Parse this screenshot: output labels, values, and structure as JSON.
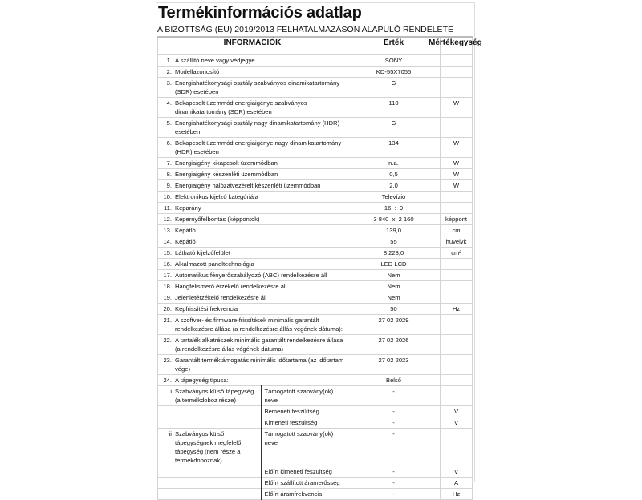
{
  "title": "Termékinformációs adatlap",
  "subtitle": "A BIZOTTSÁG (EU) 2019/2013 FELHATALMAZÁSON ALAPULÓ RENDELETE",
  "headers": {
    "info": "INFORMÁCIÓK",
    "value": "Érték",
    "unit": "Mértékegység"
  },
  "rows": [
    {
      "n": "1.",
      "label": "A szállító neve vagy védjegye",
      "value": "SONY",
      "unit": ""
    },
    {
      "n": "2.",
      "label": "Modellazonosító",
      "value": "KD-55X7055",
      "unit": ""
    },
    {
      "n": "3.",
      "label": "Energiahatékonysági osztály szabványos dinamikatartomány (SDR) esetében",
      "value": "G",
      "unit": ""
    },
    {
      "n": "4.",
      "label": "Bekapcsolt üzemmód energiaigénye szabványos dinamikatartomány (SDR) esetében",
      "value": "110",
      "unit": "W"
    },
    {
      "n": "5.",
      "label": "Energiahatékonysági osztály nagy dinamikatartomány (HDR) esetében",
      "value": "G",
      "unit": ""
    },
    {
      "n": "6.",
      "label": "Bekapcsolt üzemmód energiaigénye nagy dinamikatartomány (HDR) esetében",
      "value": "134",
      "unit": "W"
    },
    {
      "n": "7.",
      "label": "Energiaigény kikapcsolt üzemmódban",
      "value": "n.a.",
      "unit": "W"
    },
    {
      "n": "8.",
      "label": "Energiaigény készenléti üzemmódban",
      "value": "0,5",
      "unit": "W"
    },
    {
      "n": "9.",
      "label": "Energiaigény hálózatvezérelt készenléti üzemmódban",
      "value": "2,0",
      "unit": "W"
    },
    {
      "n": "10.",
      "label": "Elektronikus kijelző kategóriája",
      "value": "Televízió",
      "unit": ""
    },
    {
      "n": "11.",
      "label": "Képarány",
      "value": "16  :  9",
      "unit": ""
    },
    {
      "n": "12.",
      "label": "Képernyőfelbontás (képpontok)",
      "value": "3 840  x  2 160",
      "unit": "képpont"
    },
    {
      "n": "13.",
      "label": "Képátló",
      "value": "139,0",
      "unit": "cm"
    },
    {
      "n": "14.",
      "label": "Képátló",
      "value": "55",
      "unit": "hüvelyk"
    },
    {
      "n": "15.",
      "label": "Látható kijelzőfelület",
      "value": "8 228,0",
      "unit": "cm²"
    },
    {
      "n": "16.",
      "label": "Alkalmazott paneltechnológia",
      "value": "LED LCD",
      "unit": ""
    },
    {
      "n": "17.",
      "label": "Automatikus fényerőszabályozó (ABC) rendelkezésre áll",
      "value": "Nem",
      "unit": ""
    },
    {
      "n": "18.",
      "label": "Hangfelismerő érzékelő rendelkezésre áll",
      "value": "Nem",
      "unit": ""
    },
    {
      "n": "19.",
      "label": "Jelenlétérzékelő rendelkezésre áll",
      "value": "Nem",
      "unit": ""
    },
    {
      "n": "20.",
      "label": "Képfrissítési frekvencia",
      "value": "50",
      "unit": "Hz"
    },
    {
      "n": "21.",
      "label": "A szoftver- és firmware-frissítések minimális garantált rendelkezésre állása (a rendelkezésre állás végének dátuma):",
      "value": "27 02 2029",
      "unit": ""
    },
    {
      "n": "22.",
      "label": "A tartalék alkatrészek minimális garantált rendelkezésre állása (a rendelkezésre állás végének dátuma)",
      "value": "27 02 2026",
      "unit": ""
    },
    {
      "n": "23.",
      "label": "Garantált terméktámogatás minimális időtartama (az időtartam vége)",
      "value": "27 02 2023",
      "unit": ""
    },
    {
      "n": "24.",
      "label": "A tápegység típusa:",
      "value": "Belső",
      "unit": ""
    }
  ],
  "psu": [
    {
      "n": "i",
      "group": "Szabványos külső tápegység (a termékdoboz része)",
      "items": [
        {
          "label": "Támogatott szabvány(ok) neve",
          "value": "-",
          "unit": ""
        },
        {
          "label": "Bemeneti feszültség",
          "value": "-",
          "unit": "V"
        },
        {
          "label": "Kimeneti feszültség",
          "value": "-",
          "unit": "V"
        }
      ]
    },
    {
      "n": "ii",
      "group": "Szabványos külső tápegységnek megfelelő tápegység (nem része a termékdoboznak)",
      "items": [
        {
          "label": "Támogatott szabvány(ok) neve",
          "value": "-",
          "unit": ""
        },
        {
          "label": "Előírt kimeneti feszültség",
          "value": "-",
          "unit": "V"
        },
        {
          "label": "Előírt szállított áramerősség",
          "value": "-",
          "unit": "A"
        },
        {
          "label": "Előírt áramfrekvencia",
          "value": "-",
          "unit": "Hz"
        }
      ]
    }
  ]
}
